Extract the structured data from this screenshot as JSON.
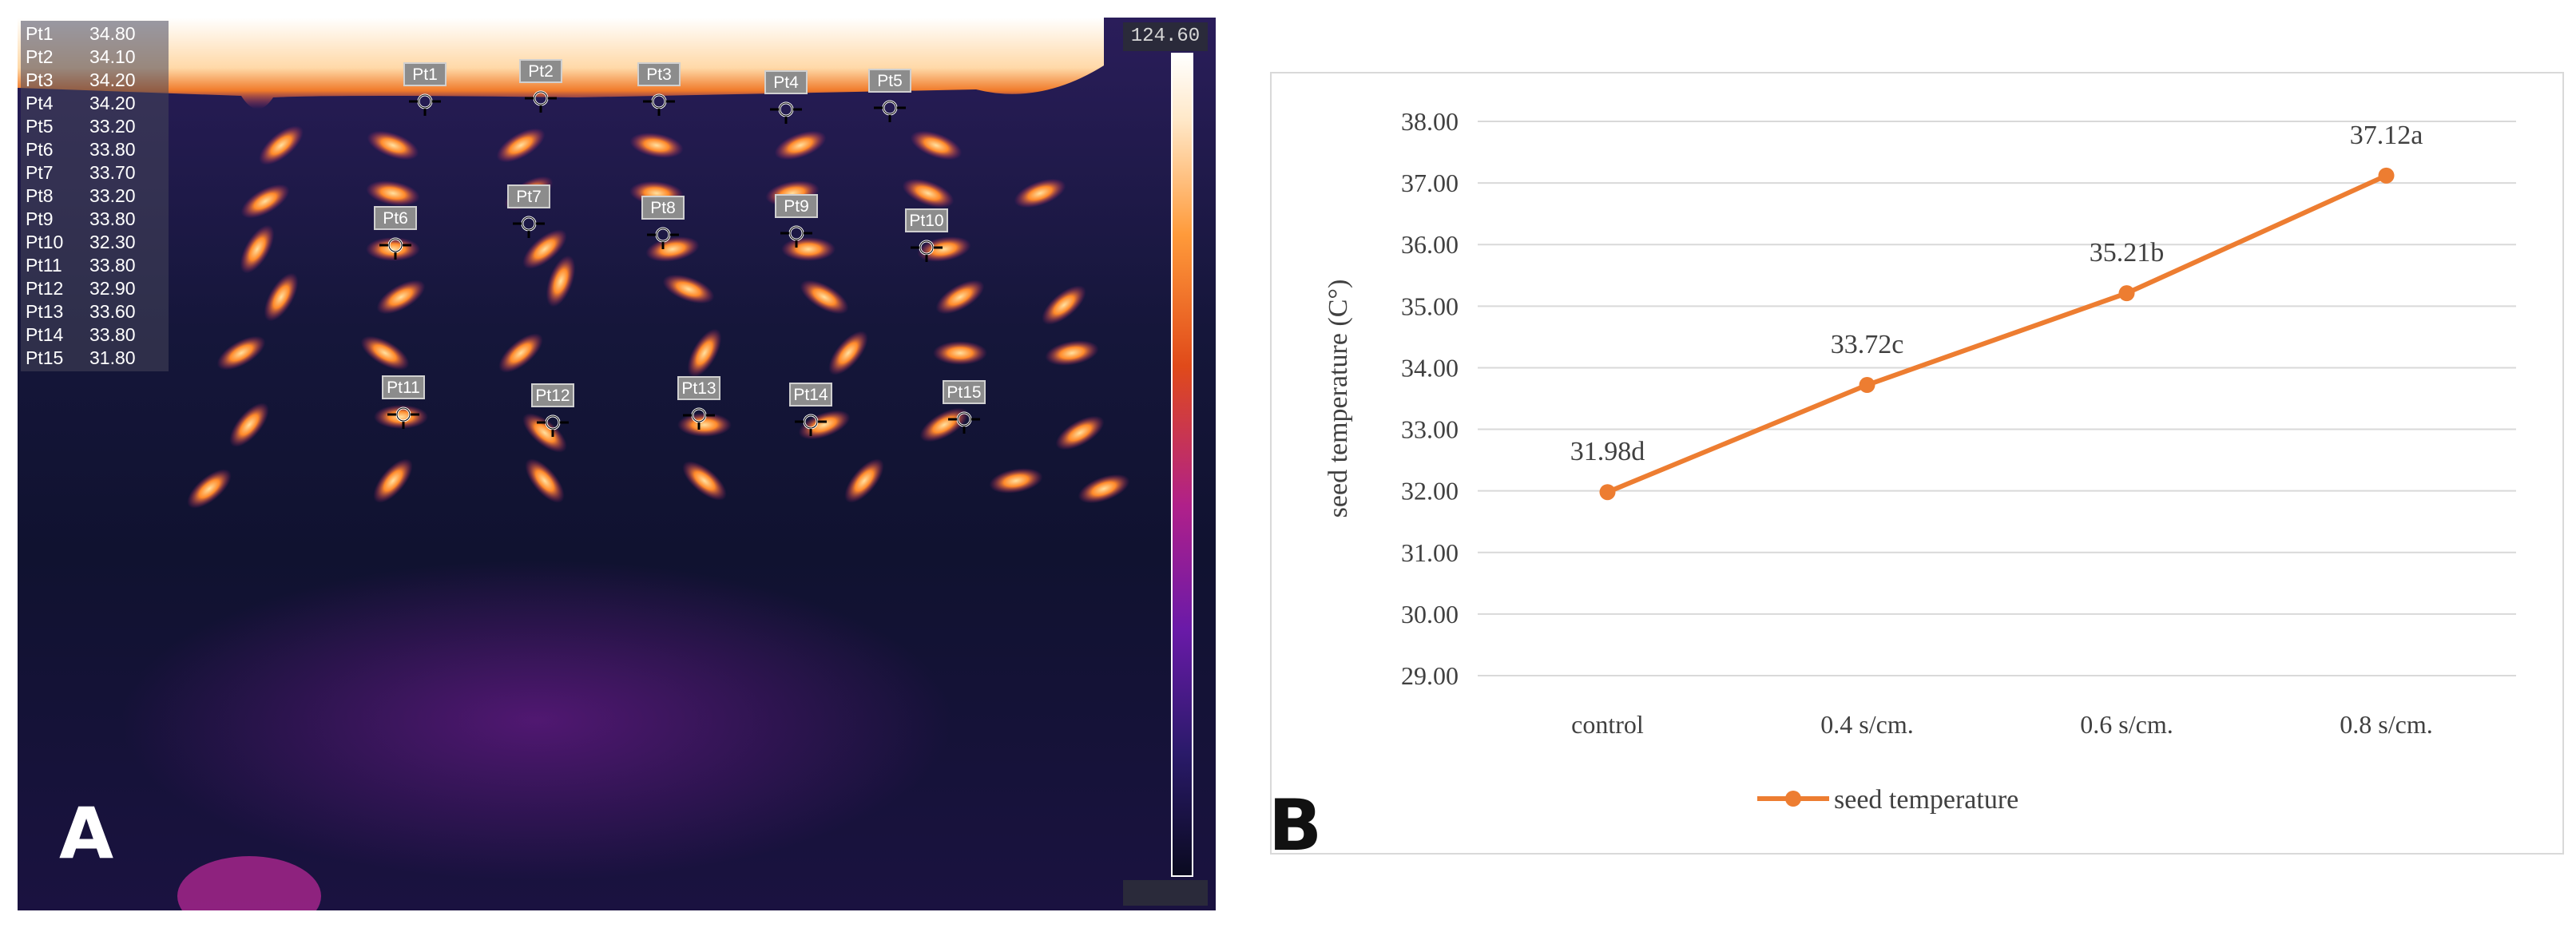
{
  "panel_a": {
    "letter": "A",
    "max_readout": "124.60",
    "points_table": [
      {
        "name": "Pt1",
        "value": "34.80"
      },
      {
        "name": "Pt2",
        "value": "34.10"
      },
      {
        "name": "Pt3",
        "value": "34.20"
      },
      {
        "name": "Pt4",
        "value": "34.20"
      },
      {
        "name": "Pt5",
        "value": "33.20"
      },
      {
        "name": "Pt6",
        "value": "33.80"
      },
      {
        "name": "Pt7",
        "value": "33.70"
      },
      {
        "name": "Pt8",
        "value": "33.20"
      },
      {
        "name": "Pt9",
        "value": "33.80"
      },
      {
        "name": "Pt10",
        "value": "32.30"
      },
      {
        "name": "Pt11",
        "value": "33.80"
      },
      {
        "name": "Pt12",
        "value": "32.90"
      },
      {
        "name": "Pt13",
        "value": "33.60"
      },
      {
        "name": "Pt14",
        "value": "33.80"
      },
      {
        "name": "Pt15",
        "value": "31.80"
      }
    ],
    "markers": [
      "Pt1",
      "Pt2",
      "Pt3",
      "Pt4",
      "Pt5",
      "Pt6",
      "Pt7",
      "Pt8",
      "Pt9",
      "Pt10",
      "Pt11",
      "Pt12",
      "Pt13",
      "Pt14",
      "Pt15"
    ]
  },
  "panel_b": {
    "letter": "B"
  },
  "chart_data": {
    "type": "line",
    "categories": [
      "control",
      "0.4 s/cm.",
      "0.6 s/cm.",
      "0.8 s/cm."
    ],
    "series": [
      {
        "name": "seed temperature",
        "values": [
          31.98,
          33.72,
          35.21,
          37.12
        ],
        "color": "#ed7d31"
      }
    ],
    "data_labels": [
      "31.98d",
      "33.72c",
      "35.21b",
      "37.12a"
    ],
    "ylabel": "seed temperature (C°)",
    "xlabel": "",
    "ylim": [
      29,
      38
    ],
    "yticks": [
      "29.00",
      "30.00",
      "31.00",
      "32.00",
      "33.00",
      "34.00",
      "35.00",
      "36.00",
      "37.00",
      "38.00"
    ],
    "grid": true,
    "legend_position": "bottom"
  }
}
